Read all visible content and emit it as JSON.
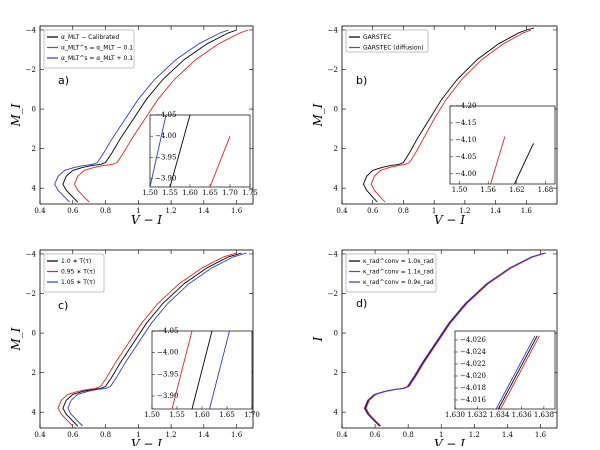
{
  "chart_data": [
    {
      "type": "line",
      "panel_label": "a)",
      "xlabel": "V − I",
      "ylabel": "M_I",
      "xlim": [
        0.4,
        1.7
      ],
      "ylim": [
        4.8,
        -4.2
      ],
      "xticks": [
        0.4,
        0.6,
        0.8,
        1.0,
        1.2,
        1.4,
        1.6
      ],
      "yticks": [
        4,
        2,
        0,
        -2,
        -4
      ],
      "legend": [
        {
          "label": "α_MLT − Calibrated",
          "color": "#000000"
        },
        {
          "label": "α_MLT^s = α_MLT − 0.1",
          "color": "#e8231b"
        },
        {
          "label": "α_MLT^s = α_MLT + 0.1",
          "color": "#2a3fd0"
        }
      ],
      "series": [
        {
          "name": "calibrated",
          "color": "#000000",
          "offset": 0.0,
          "x": [
            0.63,
            0.6,
            0.56,
            0.54,
            0.56,
            0.6,
            0.66,
            0.72,
            0.77,
            0.8,
            0.84,
            0.89,
            0.97,
            1.05,
            1.15,
            1.28,
            1.42,
            1.55,
            1.6
          ],
          "y": [
            4.7,
            4.45,
            4.1,
            3.8,
            3.4,
            3.1,
            2.95,
            2.85,
            2.8,
            2.7,
            2.2,
            1.5,
            0.5,
            -0.5,
            -1.5,
            -2.5,
            -3.3,
            -3.85,
            -4.0
          ]
        },
        {
          "name": "alpha-0.1",
          "color": "#e8231b",
          "offset": 0.07,
          "x": [
            0.63,
            0.6,
            0.56,
            0.54,
            0.56,
            0.6,
            0.66,
            0.72,
            0.77,
            0.8,
            0.84,
            0.89,
            0.97,
            1.05,
            1.15,
            1.28,
            1.42,
            1.55,
            1.6
          ],
          "y": [
            4.7,
            4.45,
            4.1,
            3.8,
            3.4,
            3.1,
            2.95,
            2.85,
            2.8,
            2.7,
            2.2,
            1.5,
            0.5,
            -0.5,
            -1.5,
            -2.5,
            -3.3,
            -3.85,
            -4.0
          ]
        },
        {
          "name": "alpha+0.1",
          "color": "#2a3fd0",
          "offset": -0.05,
          "x": [
            0.63,
            0.6,
            0.56,
            0.54,
            0.56,
            0.6,
            0.66,
            0.72,
            0.77,
            0.8,
            0.84,
            0.89,
            0.97,
            1.05,
            1.15,
            1.28,
            1.42,
            1.55,
            1.6
          ],
          "y": [
            4.7,
            4.45,
            4.1,
            3.8,
            3.4,
            3.1,
            2.95,
            2.85,
            2.8,
            2.7,
            2.2,
            1.5,
            0.5,
            -0.5,
            -1.5,
            -2.5,
            -3.3,
            -3.85,
            -4.0
          ]
        }
      ],
      "inset": {
        "xlim": [
          1.5,
          1.75
        ],
        "ylim": [
          -3.88,
          -4.05
        ],
        "xticks": [
          1.5,
          1.55,
          1.6,
          1.65,
          1.7,
          1.75
        ],
        "xticklabels": [
          "1.50",
          "1.55",
          "1.60",
          "1.65",
          "1.70",
          "1.75"
        ],
        "yticks": [
          -3.9,
          -3.95,
          -4.0,
          -4.05
        ],
        "yticklabels": [
          "−3.90",
          "−3.95",
          "−4.00",
          "−4.05"
        ],
        "lines": [
          {
            "color": "#2a3fd0",
            "x": [
              1.5,
              1.54
            ],
            "y": [
              -3.88,
              -4.05
            ]
          },
          {
            "color": "#000000",
            "x": [
              1.55,
              1.6
            ],
            "y": [
              -3.88,
              -4.05
            ]
          },
          {
            "color": "#e8231b",
            "x": [
              1.65,
              1.7
            ],
            "y": [
              -3.88,
              -4.0
            ]
          }
        ]
      }
    },
    {
      "type": "line",
      "panel_label": "b)",
      "xlabel": "V − I",
      "ylabel": "M_I",
      "xlim": [
        0.4,
        1.8
      ],
      "ylim": [
        4.8,
        -4.2
      ],
      "xticks": [
        0.4,
        0.6,
        0.8,
        1.0,
        1.2,
        1.4,
        1.6
      ],
      "yticks": [
        4,
        2,
        0,
        -2,
        -4
      ],
      "legend": [
        {
          "label": "GARSTEC",
          "color": "#000000"
        },
        {
          "label": "GARSTEC (diffusion)",
          "color": "#e8231b"
        }
      ],
      "series": [
        {
          "name": "GARSTEC",
          "color": "#000000",
          "offset": 0.0,
          "x": [
            0.63,
            0.6,
            0.56,
            0.54,
            0.56,
            0.6,
            0.66,
            0.72,
            0.77,
            0.8,
            0.84,
            0.89,
            0.97,
            1.05,
            1.15,
            1.28,
            1.42,
            1.55,
            1.6,
            1.65
          ],
          "y": [
            4.7,
            4.45,
            4.1,
            3.8,
            3.4,
            3.1,
            2.95,
            2.85,
            2.8,
            2.7,
            2.2,
            1.5,
            0.5,
            -0.5,
            -1.5,
            -2.5,
            -3.3,
            -3.85,
            -4.0,
            -4.1
          ]
        },
        {
          "name": "GARSTEC (diffusion)",
          "color": "#e8231b",
          "offset": 0.03,
          "x": [
            0.65,
            0.62,
            0.58,
            0.56,
            0.58,
            0.62,
            0.68,
            0.74,
            0.78,
            0.81,
            0.85,
            0.9,
            0.97,
            1.05,
            1.15,
            1.28,
            1.42,
            1.55,
            1.6
          ],
          "y": [
            4.7,
            4.45,
            4.1,
            3.8,
            3.4,
            3.1,
            2.95,
            2.85,
            2.8,
            2.7,
            2.2,
            1.5,
            0.5,
            -0.5,
            -1.5,
            -2.5,
            -3.3,
            -3.85,
            -4.0
          ]
        }
      ],
      "inset": {
        "xlim": [
          1.48,
          1.7
        ],
        "ylim": [
          -3.97,
          -4.2
        ],
        "xticks": [
          1.5,
          1.56,
          1.62,
          1.68
        ],
        "xticklabels": [
          "1.50",
          "1.56",
          "1.62",
          "1.68"
        ],
        "yticks": [
          -4.0,
          -4.05,
          -4.1,
          -4.15,
          -4.2
        ],
        "yticklabels": [
          "−4.00",
          "−4.05",
          "−4.10",
          "−4.15",
          "−4.20"
        ],
        "lines": [
          {
            "color": "#e8231b",
            "x": [
              1.565,
              1.595
            ],
            "y": [
              -3.97,
              -4.11
            ]
          },
          {
            "color": "#000000",
            "x": [
              1.615,
              1.655
            ],
            "y": [
              -3.97,
              -4.09
            ]
          }
        ]
      }
    },
    {
      "type": "line",
      "panel_label": "c)",
      "xlabel": "V − I",
      "ylabel": "M_I",
      "xlim": [
        0.4,
        1.7
      ],
      "ylim": [
        4.8,
        -4.2
      ],
      "xticks": [
        0.4,
        0.6,
        0.8,
        1.0,
        1.2,
        1.4,
        1.6
      ],
      "yticks": [
        4,
        2,
        0,
        -2,
        -4
      ],
      "legend": [
        {
          "label": "1.0 ∗ T(τ)",
          "color": "#000000"
        },
        {
          "label": "0.95 ∗ T(τ)",
          "color": "#e8231b"
        },
        {
          "label": "1.05 ∗ T(τ)",
          "color": "#2a3fd0"
        }
      ],
      "series": [
        {
          "name": "1.0*T",
          "color": "#000000",
          "offset": 0.0,
          "x": [
            0.63,
            0.6,
            0.56,
            0.54,
            0.56,
            0.6,
            0.66,
            0.72,
            0.77,
            0.8,
            0.84,
            0.89,
            0.97,
            1.05,
            1.15,
            1.28,
            1.42,
            1.55,
            1.63
          ],
          "y": [
            4.7,
            4.45,
            4.1,
            3.8,
            3.4,
            3.1,
            2.95,
            2.85,
            2.8,
            2.7,
            2.2,
            1.5,
            0.5,
            -0.5,
            -1.5,
            -2.5,
            -3.3,
            -3.85,
            -4.05
          ]
        },
        {
          "name": "0.95*T",
          "color": "#e8231b",
          "offset": -0.03,
          "x": [
            0.63,
            0.6,
            0.56,
            0.54,
            0.56,
            0.6,
            0.66,
            0.72,
            0.77,
            0.8,
            0.84,
            0.89,
            0.97,
            1.05,
            1.15,
            1.28,
            1.42,
            1.55,
            1.63
          ],
          "y": [
            4.7,
            4.45,
            4.1,
            3.8,
            3.4,
            3.1,
            2.95,
            2.85,
            2.8,
            2.7,
            2.2,
            1.5,
            0.5,
            -0.5,
            -1.5,
            -2.5,
            -3.3,
            -3.85,
            -4.05
          ]
        },
        {
          "name": "1.05*T",
          "color": "#2a3fd0",
          "offset": 0.03,
          "x": [
            0.63,
            0.6,
            0.56,
            0.54,
            0.56,
            0.6,
            0.66,
            0.72,
            0.77,
            0.8,
            0.84,
            0.89,
            0.97,
            1.05,
            1.15,
            1.28,
            1.42,
            1.55,
            1.63
          ],
          "y": [
            4.7,
            4.45,
            4.1,
            3.8,
            3.4,
            3.1,
            2.95,
            2.85,
            2.8,
            2.7,
            2.2,
            1.5,
            0.5,
            -0.5,
            -1.5,
            -2.5,
            -3.3,
            -3.85,
            -4.05
          ]
        }
      ],
      "inset": {
        "xlim": [
          1.5,
          1.7
        ],
        "ylim": [
          -3.87,
          -4.05
        ],
        "xticks": [
          1.5,
          1.55,
          1.6,
          1.65,
          1.7
        ],
        "xticklabels": [
          "1.50",
          "1.55",
          "1.60",
          "1.65",
          "1.70"
        ],
        "yticks": [
          -3.9,
          -3.95,
          -4.0,
          -4.05
        ],
        "yticklabels": [
          "−3.90",
          "−3.95",
          "−4.00",
          "−4.05"
        ],
        "lines": [
          {
            "color": "#e8231b",
            "x": [
              1.54,
              1.58
            ],
            "y": [
              -3.87,
              -4.05
            ]
          },
          {
            "color": "#000000",
            "x": [
              1.58,
              1.62
            ],
            "y": [
              -3.87,
              -4.05
            ]
          },
          {
            "color": "#2a3fd0",
            "x": [
              1.615,
              1.655
            ],
            "y": [
              -3.87,
              -4.05
            ]
          }
        ]
      }
    },
    {
      "type": "line",
      "panel_label": "d)",
      "xlabel": "V − I",
      "ylabel": "I",
      "xlim": [
        0.4,
        1.7
      ],
      "ylim": [
        4.8,
        -4.2
      ],
      "xticks": [
        0.4,
        0.6,
        0.8,
        1.0,
        1.2,
        1.4,
        1.6
      ],
      "yticks": [
        4,
        2,
        0,
        -2,
        -4
      ],
      "legend": [
        {
          "label": "κ_rad^conv = 1.0κ_rad",
          "color": "#000000"
        },
        {
          "label": "κ_rad^conv = 1.1κ_rad",
          "color": "#e8231b"
        },
        {
          "label": "κ_rad^conv = 0.9κ_rad",
          "color": "#2a3fd0"
        }
      ],
      "series": [
        {
          "name": "1.0 kappa",
          "color": "#000000",
          "offset": 0.0,
          "x": [
            0.63,
            0.6,
            0.56,
            0.54,
            0.56,
            0.6,
            0.66,
            0.72,
            0.77,
            0.8,
            0.84,
            0.89,
            0.97,
            1.05,
            1.15,
            1.28,
            1.42,
            1.55,
            1.63
          ],
          "y": [
            4.7,
            4.45,
            4.1,
            3.8,
            3.4,
            3.1,
            2.95,
            2.85,
            2.8,
            2.7,
            2.2,
            1.5,
            0.5,
            -0.5,
            -1.5,
            -2.5,
            -3.3,
            -3.85,
            -4.05
          ]
        },
        {
          "name": "1.1 kappa",
          "color": "#e8231b",
          "offset": 0.005,
          "x": [
            0.63,
            0.6,
            0.56,
            0.54,
            0.56,
            0.6,
            0.66,
            0.72,
            0.77,
            0.8,
            0.84,
            0.89,
            0.97,
            1.05,
            1.15,
            1.28,
            1.42,
            1.55,
            1.63
          ],
          "y": [
            4.7,
            4.45,
            4.1,
            3.8,
            3.4,
            3.1,
            2.95,
            2.85,
            2.8,
            2.7,
            2.2,
            1.5,
            0.5,
            -0.5,
            -1.5,
            -2.5,
            -3.3,
            -3.85,
            -4.05
          ]
        },
        {
          "name": "0.9 kappa",
          "color": "#2a3fd0",
          "offset": -0.005,
          "x": [
            0.63,
            0.6,
            0.56,
            0.54,
            0.56,
            0.6,
            0.66,
            0.72,
            0.77,
            0.8,
            0.84,
            0.89,
            0.97,
            1.05,
            1.15,
            1.28,
            1.42,
            1.55,
            1.63
          ],
          "y": [
            4.7,
            4.45,
            4.1,
            3.8,
            3.4,
            3.1,
            2.95,
            2.85,
            2.8,
            2.7,
            2.2,
            1.5,
            0.5,
            -0.5,
            -1.5,
            -2.5,
            -3.3,
            -3.85,
            -4.05
          ]
        }
      ],
      "inset": {
        "xlim": [
          1.63,
          1.639
        ],
        "ylim": [
          -4.0145,
          -4.0275
        ],
        "xticks": [
          1.63,
          1.632,
          1.634,
          1.636,
          1.638
        ],
        "xticklabels": [
          "1.630",
          "1.632",
          "1.634",
          "1.636",
          "1.638"
        ],
        "yticks": [
          -4.016,
          -4.018,
          -4.02,
          -4.022,
          -4.024,
          -4.026
        ],
        "yticklabels": [
          "−4.016",
          "−4.018",
          "−4.020",
          "−4.022",
          "−4.024",
          "−4.026"
        ],
        "lines": [
          {
            "color": "#000000",
            "x": [
              1.6339,
              1.6374
            ],
            "y": [
              -4.0145,
              -4.0267
            ]
          },
          {
            "color": "#e8231b",
            "x": [
              1.6341,
              1.6376
            ],
            "y": [
              -4.0145,
              -4.0267
            ]
          },
          {
            "color": "#2a3fd0",
            "x": [
              1.6337,
              1.6372
            ],
            "y": [
              -4.0145,
              -4.0267
            ]
          }
        ]
      }
    }
  ]
}
